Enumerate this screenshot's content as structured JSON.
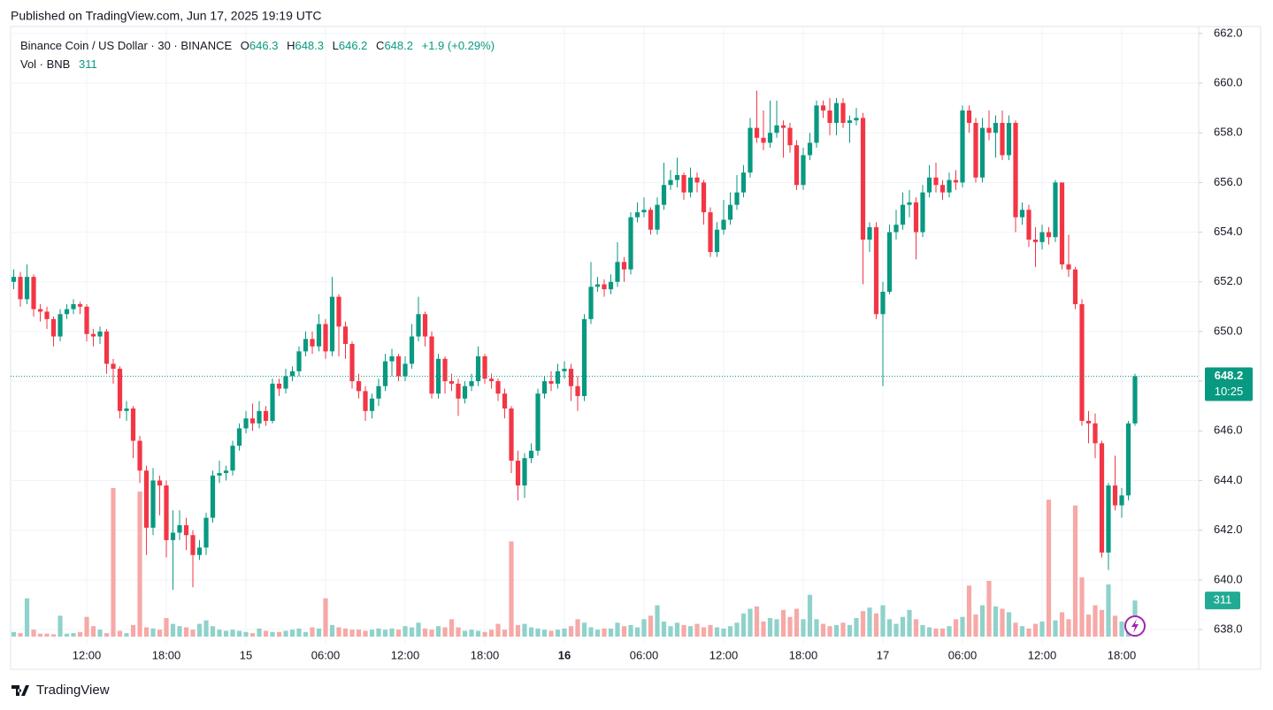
{
  "page": {
    "published": "Published on TradingView.com, Jun 17, 2025 19:19 UTC",
    "brand": "TradingView"
  },
  "chart_data": {
    "type": "candlestick",
    "legend": {
      "symbol": "Binance Coin / US Dollar · 30 · BINANCE",
      "labels": [
        "O",
        "H",
        "L",
        "C"
      ],
      "open": 646.3,
      "high": 648.3,
      "low": 646.2,
      "close": 648.2,
      "change": 1.9,
      "change_label": "+1.9",
      "change_percent": 0.29,
      "change_percent_label": "(+0.29%)"
    },
    "volume_legend": "Vol · BNB",
    "countdown": "10:25",
    "colors": {
      "up": "#089981",
      "down": "#f23645",
      "volume_up": "#8fd2cb",
      "volume_down": "#f6a9a7"
    },
    "open": [
      652.0,
      652.2,
      651.3,
      652.2,
      650.9,
      650.8,
      650.5,
      649.8,
      650.7,
      650.9,
      651.1,
      651.0,
      649.9,
      649.8,
      650.0,
      648.7,
      648.5,
      646.8,
      646.9,
      645.6,
      644.4,
      642.1,
      644.0,
      643.8,
      641.6,
      641.9,
      642.2,
      641.8,
      641.0,
      641.3,
      642.5,
      644.2,
      644.3,
      644.4,
      645.4,
      646.1,
      646.5,
      646.3,
      646.8,
      646.4,
      647.9,
      647.7,
      648.2,
      648.4,
      649.2,
      649.7,
      649.4,
      650.3,
      649.2,
      651.4,
      650.2,
      649.5,
      648.0,
      647.6,
      646.8,
      647.3,
      647.8,
      648.8,
      649.0,
      648.2,
      648.7,
      649.8,
      650.7,
      649.8,
      647.5,
      648.9,
      648.0,
      647.9,
      647.3,
      647.8,
      648.0,
      649.0,
      648.1,
      648.0,
      647.5,
      646.9,
      644.8,
      643.8,
      644.9,
      645.2,
      647.5,
      648.0,
      647.9,
      648.4,
      648.5,
      647.8,
      647.4,
      650.5,
      651.8,
      651.9,
      651.7,
      652.0,
      652.8,
      652.5,
      654.6,
      654.8,
      654.9,
      654.1,
      655.1,
      655.9,
      656.1,
      656.3,
      655.6,
      656.2,
      656.0,
      654.8,
      653.2,
      654.1,
      654.5,
      655.1,
      655.6,
      656.4,
      658.2,
      657.8,
      657.6,
      658.0,
      658.3,
      658.2,
      657.5,
      655.9,
      657.1,
      657.6,
      659.1,
      658.9,
      658.4,
      659.2,
      658.4,
      658.5,
      658.6,
      653.7,
      654.2,
      650.7,
      651.6,
      654.0,
      654.3,
      655.1,
      655.2,
      654.0,
      655.6,
      656.2,
      655.9,
      655.6,
      656.1,
      656.0,
      658.9,
      658.4,
      656.2,
      658.2,
      658.0,
      658.4,
      657.1,
      658.4,
      654.6,
      654.9,
      653.7,
      653.6,
      654.0,
      653.8,
      656.0,
      652.7,
      652.5,
      651.1,
      646.4,
      646.3,
      645.5,
      641.1,
      643.8,
      643.0,
      643.4,
      646.3
    ],
    "high": [
      652.5,
      652.4,
      652.7,
      652.3,
      651.1,
      651.0,
      650.6,
      650.9,
      651.1,
      651.3,
      651.2,
      651.1,
      650.1,
      650.2,
      650.1,
      648.9,
      648.6,
      647.2,
      647.0,
      645.8,
      644.6,
      644.5,
      644.2,
      644.0,
      642.8,
      642.8,
      642.5,
      642.0,
      641.6,
      642.7,
      644.4,
      644.8,
      644.6,
      645.6,
      646.3,
      646.8,
      647.1,
      647.2,
      647.0,
      648.1,
      648.1,
      648.5,
      648.6,
      649.4,
      650.0,
      650.0,
      650.7,
      650.5,
      652.2,
      651.5,
      650.4,
      649.6,
      648.3,
      647.8,
      647.5,
      648.1,
      649.1,
      649.3,
      649.1,
      649.0,
      650.3,
      651.4,
      650.8,
      650.0,
      649.1,
      649.0,
      648.3,
      648.1,
      648.0,
      648.3,
      649.4,
      649.1,
      648.3,
      648.1,
      647.7,
      647.0,
      645.2,
      645.1,
      645.5,
      647.7,
      648.2,
      648.4,
      648.7,
      648.8,
      648.7,
      648.2,
      650.7,
      652.8,
      652.2,
      652.1,
      652.3,
      653.6,
      653.0,
      654.8,
      655.2,
      655.4,
      655.0,
      655.4,
      656.8,
      656.5,
      657.0,
      656.4,
      656.6,
      656.4,
      656.1,
      655.0,
      654.4,
      655.3,
      655.6,
      656.3,
      656.7,
      658.6,
      659.7,
      658.9,
      659.3,
      659.3,
      658.5,
      658.4,
      657.7,
      657.4,
      658.0,
      659.3,
      659.3,
      659.4,
      659.4,
      659.4,
      658.7,
      659.0,
      658.8,
      654.4,
      654.4,
      652.0,
      654.3,
      654.9,
      655.6,
      655.7,
      655.4,
      655.9,
      656.7,
      656.8,
      656.1,
      656.4,
      656.5,
      659.1,
      659.1,
      658.6,
      658.6,
      658.9,
      658.7,
      658.9,
      658.7,
      658.5,
      655.2,
      655.1,
      654.2,
      654.3,
      654.2,
      656.1,
      656.0,
      653.9,
      652.6,
      651.3,
      646.8,
      646.7,
      645.6,
      643.9,
      645.0,
      643.7,
      646.4,
      648.3
    ],
    "low": [
      651.7,
      651.0,
      651.1,
      650.6,
      650.4,
      650.1,
      649.4,
      649.6,
      650.5,
      650.7,
      650.7,
      649.6,
      649.4,
      649.5,
      648.3,
      647.9,
      646.5,
      646.4,
      644.9,
      643.9,
      641.0,
      641.8,
      642.6,
      640.9,
      639.6,
      641.6,
      641.2,
      639.7,
      640.8,
      641.0,
      642.3,
      643.9,
      644.0,
      644.2,
      645.2,
      645.9,
      646.0,
      646.1,
      646.2,
      646.3,
      647.4,
      647.5,
      648.0,
      648.2,
      649.0,
      649.1,
      649.2,
      648.9,
      649.0,
      649.0,
      648.9,
      647.7,
      647.3,
      646.4,
      646.5,
      647.0,
      647.6,
      648.2,
      648.0,
      648.0,
      648.5,
      649.6,
      649.4,
      647.3,
      647.3,
      647.5,
      647.6,
      646.6,
      647.1,
      647.6,
      647.8,
      647.9,
      647.7,
      647.2,
      646.5,
      644.3,
      643.2,
      643.3,
      644.7,
      645.0,
      647.3,
      647.6,
      647.7,
      648.1,
      647.2,
      646.8,
      647.2,
      650.3,
      651.6,
      651.4,
      651.5,
      651.8,
      652.0,
      652.3,
      654.4,
      654.6,
      653.9,
      653.9,
      654.9,
      655.7,
      655.8,
      655.3,
      655.4,
      655.6,
      654.3,
      653.0,
      653.0,
      653.9,
      654.3,
      654.9,
      655.4,
      656.2,
      657.6,
      657.3,
      657.4,
      657.8,
      657.0,
      657.2,
      655.7,
      655.7,
      656.9,
      657.4,
      658.6,
      657.9,
      657.9,
      658.2,
      657.6,
      658.3,
      651.9,
      653.2,
      650.5,
      647.8,
      651.5,
      653.7,
      654.1,
      654.6,
      652.9,
      653.8,
      655.4,
      655.6,
      655.3,
      655.4,
      655.7,
      655.8,
      658.0,
      656.0,
      656.0,
      657.7,
      657.0,
      656.9,
      656.9,
      654.0,
      654.3,
      653.4,
      652.6,
      653.3,
      653.5,
      653.6,
      652.5,
      652.2,
      650.9,
      646.2,
      645.5,
      644.9,
      640.9,
      640.4,
      642.8,
      642.5,
      643.2,
      646.2
    ],
    "close": [
      652.2,
      651.3,
      652.2,
      650.9,
      650.8,
      650.5,
      649.8,
      650.7,
      650.9,
      651.1,
      651.0,
      649.9,
      649.8,
      650.0,
      648.7,
      648.5,
      646.8,
      646.9,
      645.6,
      644.4,
      642.1,
      644.0,
      643.8,
      641.6,
      641.9,
      642.2,
      641.8,
      641.0,
      641.3,
      642.5,
      644.2,
      644.3,
      644.4,
      645.4,
      646.1,
      646.5,
      646.3,
      646.8,
      646.4,
      647.9,
      647.7,
      648.2,
      648.4,
      649.2,
      649.7,
      649.4,
      650.3,
      649.2,
      651.4,
      650.2,
      649.5,
      648.0,
      647.6,
      646.8,
      647.3,
      647.8,
      648.8,
      649.0,
      648.2,
      648.7,
      649.8,
      650.7,
      649.8,
      647.5,
      648.9,
      648.0,
      647.9,
      647.3,
      647.8,
      648.0,
      649.0,
      648.1,
      648.0,
      647.5,
      646.9,
      644.8,
      643.8,
      644.9,
      645.2,
      647.5,
      648.0,
      647.9,
      648.4,
      648.5,
      647.8,
      647.4,
      650.5,
      651.8,
      651.9,
      651.7,
      652.0,
      652.8,
      652.5,
      654.6,
      654.8,
      654.9,
      654.1,
      655.1,
      655.9,
      656.1,
      656.3,
      655.6,
      656.2,
      656.0,
      654.8,
      653.2,
      654.1,
      654.5,
      655.1,
      655.6,
      656.4,
      658.2,
      657.8,
      657.6,
      658.0,
      658.3,
      658.2,
      657.5,
      655.9,
      657.1,
      657.6,
      659.1,
      658.9,
      658.4,
      659.2,
      658.4,
      658.5,
      658.6,
      653.7,
      654.2,
      650.7,
      651.6,
      654.0,
      654.3,
      655.1,
      655.2,
      654.0,
      655.6,
      656.2,
      655.9,
      655.6,
      656.1,
      656.0,
      658.9,
      658.4,
      656.2,
      658.2,
      658.0,
      658.4,
      657.1,
      658.4,
      654.6,
      654.9,
      653.7,
      653.6,
      654.0,
      653.8,
      656.0,
      652.7,
      652.5,
      651.1,
      646.4,
      646.3,
      645.5,
      641.1,
      643.8,
      643.0,
      643.4,
      646.3,
      648.2
    ],
    "volume": [
      40,
      30,
      330,
      60,
      25,
      25,
      20,
      180,
      25,
      30,
      40,
      170,
      90,
      60,
      30,
      1280,
      50,
      30,
      100,
      1250,
      80,
      70,
      60,
      160,
      110,
      90,
      80,
      60,
      110,
      140,
      90,
      60,
      50,
      60,
      50,
      40,
      30,
      70,
      50,
      40,
      40,
      50,
      60,
      70,
      40,
      80,
      70,
      330,
      100,
      80,
      70,
      60,
      60,
      50,
      60,
      70,
      60,
      70,
      60,
      90,
      80,
      120,
      70,
      60,
      90,
      80,
      150,
      80,
      50,
      60,
      50,
      40,
      60,
      110,
      60,
      820,
      100,
      110,
      80,
      70,
      60,
      50,
      60,
      70,
      90,
      150,
      120,
      80,
      60,
      70,
      70,
      120,
      90,
      100,
      80,
      150,
      180,
      270,
      130,
      90,
      120,
      100,
      90,
      110,
      80,
      100,
      80,
      70,
      90,
      120,
      200,
      240,
      260,
      130,
      160,
      150,
      230,
      170,
      240,
      150,
      360,
      150,
      110,
      90,
      100,
      120,
      100,
      160,
      220,
      250,
      200,
      270,
      150,
      110,
      170,
      230,
      150,
      100,
      80,
      70,
      70,
      90,
      150,
      170,
      440,
      190,
      270,
      480,
      260,
      240,
      210,
      120,
      90,
      70,
      110,
      130,
      1180,
      140,
      210,
      150,
      1130,
      510,
      190,
      270,
      230,
      450,
      180,
      130,
      100,
      311
    ],
    "xlim": [
      -0.47,
      178.6
    ],
    "xticks": [
      {
        "value": 11,
        "label": "12:00"
      },
      {
        "value": 23,
        "label": "18:00"
      },
      {
        "value": 35,
        "label": "15"
      },
      {
        "value": 47,
        "label": "06:00"
      },
      {
        "value": 59,
        "label": "12:00"
      },
      {
        "value": 71,
        "label": "18:00"
      },
      {
        "value": 83,
        "label": "16"
      },
      {
        "value": 95,
        "label": "06:00"
      },
      {
        "value": 107,
        "label": "12:00"
      },
      {
        "value": 119,
        "label": "18:00"
      },
      {
        "value": 131,
        "label": "17"
      },
      {
        "value": 143,
        "label": "06:00"
      },
      {
        "value": 155,
        "label": "12:00"
      },
      {
        "value": 167,
        "label": "18:00"
      }
    ],
    "ylim": [
      637.43,
      662.28
    ],
    "yticks": [
      {
        "value": 638,
        "label": "638.0"
      },
      {
        "value": 640,
        "label": "640.0"
      },
      {
        "value": 642,
        "label": "642.0"
      },
      {
        "value": 644,
        "label": "644.0"
      },
      {
        "value": 646,
        "label": "646.0"
      },
      {
        "value": 648,
        "label": "648.0"
      },
      {
        "value": 650,
        "label": "650.0"
      },
      {
        "value": 652,
        "label": "652.0"
      },
      {
        "value": 654,
        "label": "654.0"
      },
      {
        "value": 656,
        "label": "656.0"
      },
      {
        "value": 658,
        "label": "658.0"
      },
      {
        "value": 660,
        "label": "660.0"
      },
      {
        "value": 662,
        "label": "662.0"
      }
    ],
    "grid": true
  }
}
